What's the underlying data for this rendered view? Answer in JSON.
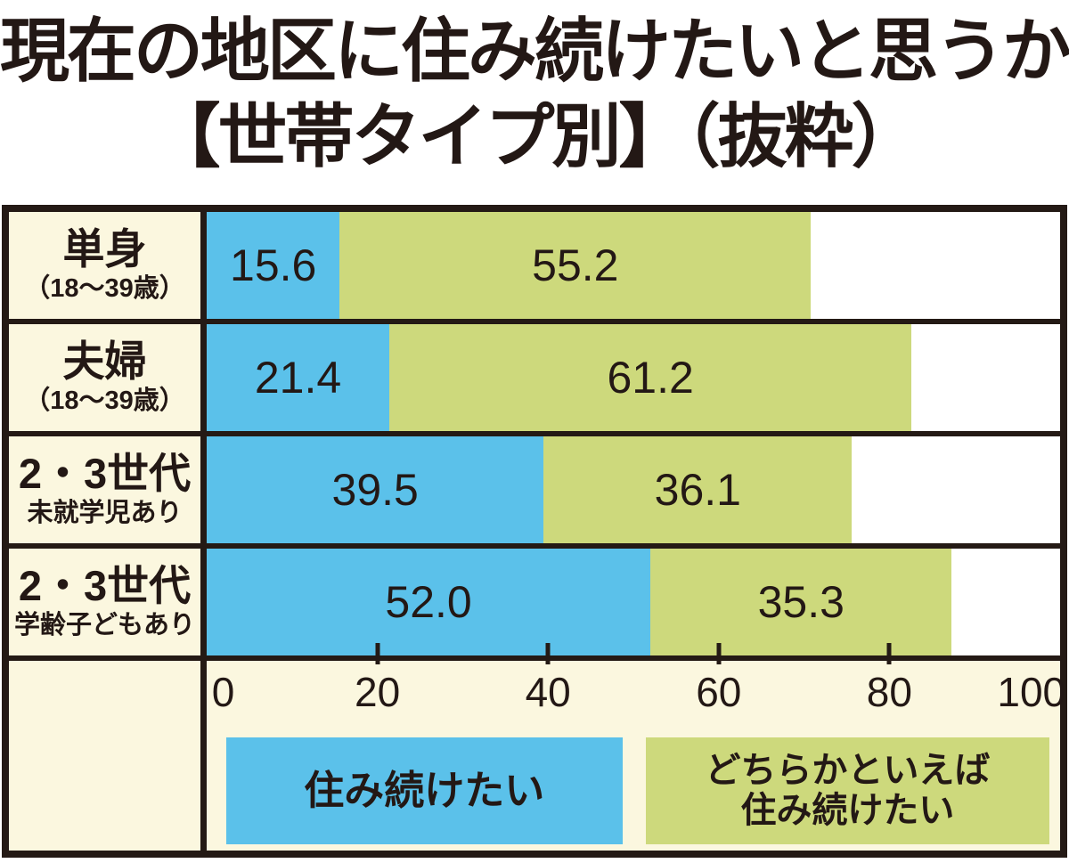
{
  "title": {
    "line1": "現在の地区に住み続けたいと思うか",
    "line2": "【世帯タイプ別】（抜粋）"
  },
  "chart_data": {
    "type": "bar",
    "orientation": "horizontal",
    "stacked": true,
    "title": "現在の地区に住み続けたいと思うか【世帯タイプ別】（抜粋）",
    "categories": [
      "単身（18～39歳）",
      "夫婦（18～39歳）",
      "2・3世代 未就学児あり",
      "2・3世代 学齢子どもあり"
    ],
    "series": [
      {
        "name": "住み続けたい",
        "color": "#5bc1ea",
        "values": [
          15.6,
          21.4,
          39.5,
          52.0
        ]
      },
      {
        "name": "どちらかといえば住み続けたい",
        "color": "#cdd97c",
        "values": [
          55.2,
          61.2,
          36.1,
          35.3
        ]
      }
    ],
    "xlim": [
      0,
      100
    ],
    "x_ticks": [
      0,
      20,
      40,
      60,
      80,
      100
    ],
    "grid": false,
    "legend_position": "bottom"
  },
  "rows": [
    {
      "label": "単身",
      "sublabel": "（18～39歳）",
      "value1": "15.6",
      "value2": "55.2"
    },
    {
      "label": "夫婦",
      "sublabel": "（18～39歳）",
      "value1": "21.4",
      "value2": "61.2"
    },
    {
      "label": "2・3世代",
      "sublabel": "未就学児あり",
      "value1": "39.5",
      "value2": "36.1"
    },
    {
      "label": "2・3世代",
      "sublabel": "学齢子どもあり",
      "value1": "52.0",
      "value2": "35.3"
    }
  ],
  "axis": {
    "ticks": [
      "0",
      "20",
      "40",
      "60",
      "80",
      "100"
    ]
  },
  "legend": {
    "blue_label": "住み続けたい",
    "green_label_line1": "どちらかといえば",
    "green_label_line2": "住み続けたい"
  },
  "colors": {
    "blue": "#5bc1ea",
    "green": "#cdd97c",
    "cream": "#fbf7df",
    "border": "#241a15",
    "text": "#231815"
  }
}
